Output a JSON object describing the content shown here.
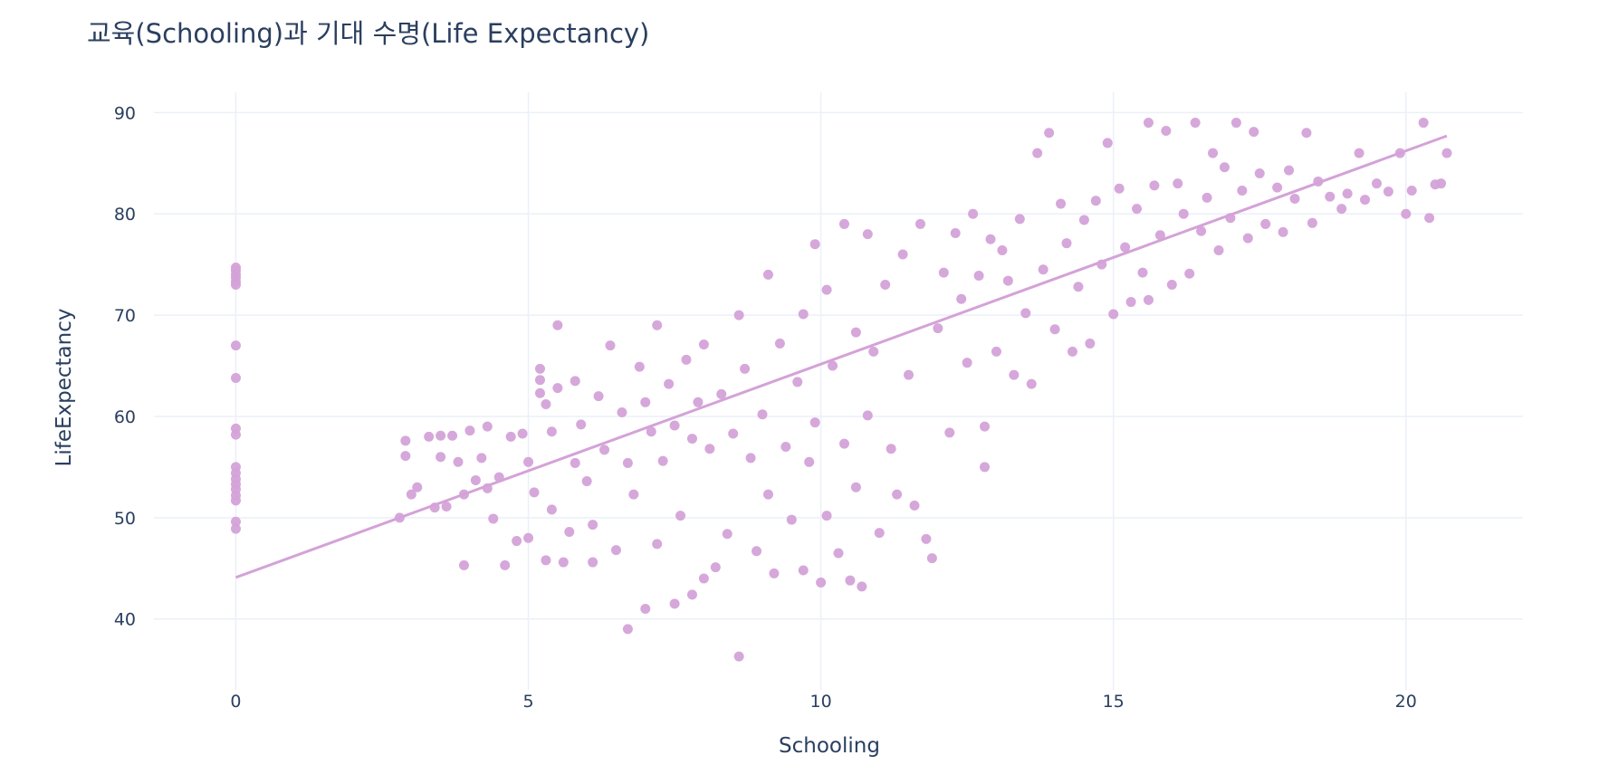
{
  "chart_data": {
    "type": "scatter",
    "title": "교육(Schooling)과 기대 수명(Life Expectancy)",
    "xlabel": "Schooling",
    "ylabel": "LifeExpectancy",
    "xlim": [
      -1.4,
      22
    ],
    "ylim": [
      33,
      92
    ],
    "x_ticks": [
      0,
      5,
      10,
      15,
      20
    ],
    "y_ticks": [
      40,
      50,
      60,
      70,
      80,
      90
    ],
    "grid": true,
    "legend": "none",
    "marker_color": "#d4a2d8",
    "trendline": {
      "type": "ols",
      "points": [
        [
          0,
          44.1
        ],
        [
          20.7,
          87.7
        ]
      ]
    },
    "points": [
      [
        0,
        74.7
      ],
      [
        0,
        74.4
      ],
      [
        0,
        74.0
      ],
      [
        0,
        73.7
      ],
      [
        0,
        73.3
      ],
      [
        0,
        73.0
      ],
      [
        0,
        67.0
      ],
      [
        0,
        63.8
      ],
      [
        0,
        58.8
      ],
      [
        0,
        58.2
      ],
      [
        0,
        55.0
      ],
      [
        0,
        54.4
      ],
      [
        0,
        53.8
      ],
      [
        0,
        53.3
      ],
      [
        0,
        52.8
      ],
      [
        0,
        52.2
      ],
      [
        0,
        51.7
      ],
      [
        0,
        49.6
      ],
      [
        0,
        48.9
      ],
      [
        2.8,
        50.0
      ],
      [
        2.9,
        57.6
      ],
      [
        2.9,
        56.1
      ],
      [
        3.0,
        52.3
      ],
      [
        3.1,
        53.0
      ],
      [
        3.3,
        58.0
      ],
      [
        3.4,
        51.0
      ],
      [
        3.5,
        58.1
      ],
      [
        3.5,
        56.0
      ],
      [
        3.6,
        51.1
      ],
      [
        3.7,
        58.1
      ],
      [
        3.8,
        55.5
      ],
      [
        3.9,
        45.3
      ],
      [
        3.9,
        52.3
      ],
      [
        4.0,
        58.6
      ],
      [
        4.1,
        53.7
      ],
      [
        4.2,
        55.9
      ],
      [
        4.3,
        52.9
      ],
      [
        4.3,
        59.0
      ],
      [
        4.4,
        49.9
      ],
      [
        4.5,
        54.0
      ],
      [
        4.6,
        45.3
      ],
      [
        4.7,
        58.0
      ],
      [
        4.8,
        47.7
      ],
      [
        4.9,
        58.3
      ],
      [
        5.0,
        55.5
      ],
      [
        5.0,
        48.0
      ],
      [
        5.1,
        52.5
      ],
      [
        5.2,
        64.7
      ],
      [
        5.2,
        63.6
      ],
      [
        5.2,
        62.3
      ],
      [
        5.3,
        61.2
      ],
      [
        5.3,
        45.8
      ],
      [
        5.4,
        58.5
      ],
      [
        5.4,
        50.8
      ],
      [
        5.5,
        69.0
      ],
      [
        5.5,
        62.8
      ],
      [
        5.6,
        45.6
      ],
      [
        5.7,
        48.6
      ],
      [
        5.8,
        55.4
      ],
      [
        5.8,
        63.5
      ],
      [
        5.9,
        59.2
      ],
      [
        6.0,
        53.6
      ],
      [
        6.1,
        45.6
      ],
      [
        6.1,
        49.3
      ],
      [
        6.2,
        62.0
      ],
      [
        6.3,
        56.7
      ],
      [
        6.4,
        67.0
      ],
      [
        6.5,
        46.8
      ],
      [
        6.6,
        60.4
      ],
      [
        6.7,
        39.0
      ],
      [
        6.7,
        55.4
      ],
      [
        6.8,
        52.3
      ],
      [
        6.9,
        64.9
      ],
      [
        7.0,
        41.0
      ],
      [
        7.0,
        61.4
      ],
      [
        7.1,
        58.5
      ],
      [
        7.2,
        69.0
      ],
      [
        7.2,
        47.4
      ],
      [
        7.3,
        55.6
      ],
      [
        7.4,
        63.2
      ],
      [
        7.5,
        41.5
      ],
      [
        7.5,
        59.1
      ],
      [
        7.6,
        50.2
      ],
      [
        7.7,
        65.6
      ],
      [
        7.8,
        42.4
      ],
      [
        7.8,
        57.8
      ],
      [
        7.9,
        61.4
      ],
      [
        8.0,
        44.0
      ],
      [
        8.0,
        67.1
      ],
      [
        8.1,
        56.8
      ],
      [
        8.2,
        45.1
      ],
      [
        8.3,
        62.2
      ],
      [
        8.4,
        48.4
      ],
      [
        8.5,
        58.3
      ],
      [
        8.6,
        36.3
      ],
      [
        8.6,
        70.0
      ],
      [
        8.7,
        64.7
      ],
      [
        8.8,
        55.9
      ],
      [
        8.9,
        46.7
      ],
      [
        9.0,
        60.2
      ],
      [
        9.1,
        74.0
      ],
      [
        9.1,
        52.3
      ],
      [
        9.2,
        44.5
      ],
      [
        9.3,
        67.2
      ],
      [
        9.4,
        57.0
      ],
      [
        9.5,
        49.8
      ],
      [
        9.6,
        63.4
      ],
      [
        9.7,
        44.8
      ],
      [
        9.7,
        70.1
      ],
      [
        9.8,
        55.5
      ],
      [
        9.9,
        77.0
      ],
      [
        9.9,
        59.4
      ],
      [
        10.0,
        43.6
      ],
      [
        10.1,
        72.5
      ],
      [
        10.1,
        50.2
      ],
      [
        10.2,
        65.0
      ],
      [
        10.3,
        46.5
      ],
      [
        10.4,
        79.0
      ],
      [
        10.4,
        57.3
      ],
      [
        10.5,
        43.8
      ],
      [
        10.6,
        68.3
      ],
      [
        10.6,
        53.0
      ],
      [
        10.7,
        43.2
      ],
      [
        10.8,
        78.0
      ],
      [
        10.8,
        60.1
      ],
      [
        10.9,
        66.4
      ],
      [
        11.0,
        48.5
      ],
      [
        11.1,
        73.0
      ],
      [
        11.2,
        56.8
      ],
      [
        11.3,
        52.3
      ],
      [
        11.4,
        76.0
      ],
      [
        11.5,
        64.1
      ],
      [
        11.6,
        51.2
      ],
      [
        11.7,
        79.0
      ],
      [
        11.8,
        47.9
      ],
      [
        11.9,
        46.0
      ],
      [
        12.0,
        68.7
      ],
      [
        12.1,
        74.2
      ],
      [
        12.2,
        58.4
      ],
      [
        12.3,
        78.1
      ],
      [
        12.4,
        71.6
      ],
      [
        12.5,
        65.3
      ],
      [
        12.6,
        80.0
      ],
      [
        12.7,
        73.9
      ],
      [
        12.8,
        59.0
      ],
      [
        12.8,
        55.0
      ],
      [
        12.9,
        77.5
      ],
      [
        13.0,
        66.4
      ],
      [
        13.1,
        76.4
      ],
      [
        13.2,
        73.4
      ],
      [
        13.3,
        64.1
      ],
      [
        13.4,
        79.5
      ],
      [
        13.5,
        70.2
      ],
      [
        13.6,
        63.2
      ],
      [
        13.7,
        86.0
      ],
      [
        13.8,
        74.5
      ],
      [
        13.9,
        88.0
      ],
      [
        14.0,
        68.6
      ],
      [
        14.1,
        81.0
      ],
      [
        14.2,
        77.1
      ],
      [
        14.3,
        66.4
      ],
      [
        14.4,
        72.8
      ],
      [
        14.5,
        79.4
      ],
      [
        14.6,
        67.2
      ],
      [
        14.7,
        81.3
      ],
      [
        14.8,
        75.0
      ],
      [
        14.9,
        87.0
      ],
      [
        15.0,
        70.1
      ],
      [
        15.1,
        82.5
      ],
      [
        15.2,
        76.7
      ],
      [
        15.3,
        71.3
      ],
      [
        15.4,
        80.5
      ],
      [
        15.5,
        74.2
      ],
      [
        15.6,
        89.0
      ],
      [
        15.6,
        71.5
      ],
      [
        15.7,
        82.8
      ],
      [
        15.8,
        77.9
      ],
      [
        15.9,
        88.2
      ],
      [
        16.0,
        73.0
      ],
      [
        16.1,
        83.0
      ],
      [
        16.2,
        80.0
      ],
      [
        16.3,
        74.1
      ],
      [
        16.4,
        89.0
      ],
      [
        16.5,
        78.3
      ],
      [
        16.6,
        81.6
      ],
      [
        16.7,
        86.0
      ],
      [
        16.8,
        76.4
      ],
      [
        16.9,
        84.6
      ],
      [
        17.0,
        79.6
      ],
      [
        17.1,
        89.0
      ],
      [
        17.2,
        82.3
      ],
      [
        17.3,
        77.6
      ],
      [
        17.4,
        88.1
      ],
      [
        17.5,
        84.0
      ],
      [
        17.6,
        79.0
      ],
      [
        17.8,
        82.6
      ],
      [
        17.9,
        78.2
      ],
      [
        18.0,
        84.3
      ],
      [
        18.1,
        81.5
      ],
      [
        18.3,
        88.0
      ],
      [
        18.4,
        79.1
      ],
      [
        18.5,
        83.2
      ],
      [
        18.7,
        81.7
      ],
      [
        18.9,
        80.5
      ],
      [
        19.0,
        82.0
      ],
      [
        19.2,
        86.0
      ],
      [
        19.3,
        81.4
      ],
      [
        19.5,
        83.0
      ],
      [
        19.7,
        82.2
      ],
      [
        19.9,
        86.0
      ],
      [
        20.0,
        80.0
      ],
      [
        20.1,
        82.3
      ],
      [
        20.3,
        89.0
      ],
      [
        20.4,
        79.6
      ],
      [
        20.5,
        82.9
      ],
      [
        20.6,
        83.0
      ],
      [
        20.7,
        86.0
      ]
    ]
  }
}
